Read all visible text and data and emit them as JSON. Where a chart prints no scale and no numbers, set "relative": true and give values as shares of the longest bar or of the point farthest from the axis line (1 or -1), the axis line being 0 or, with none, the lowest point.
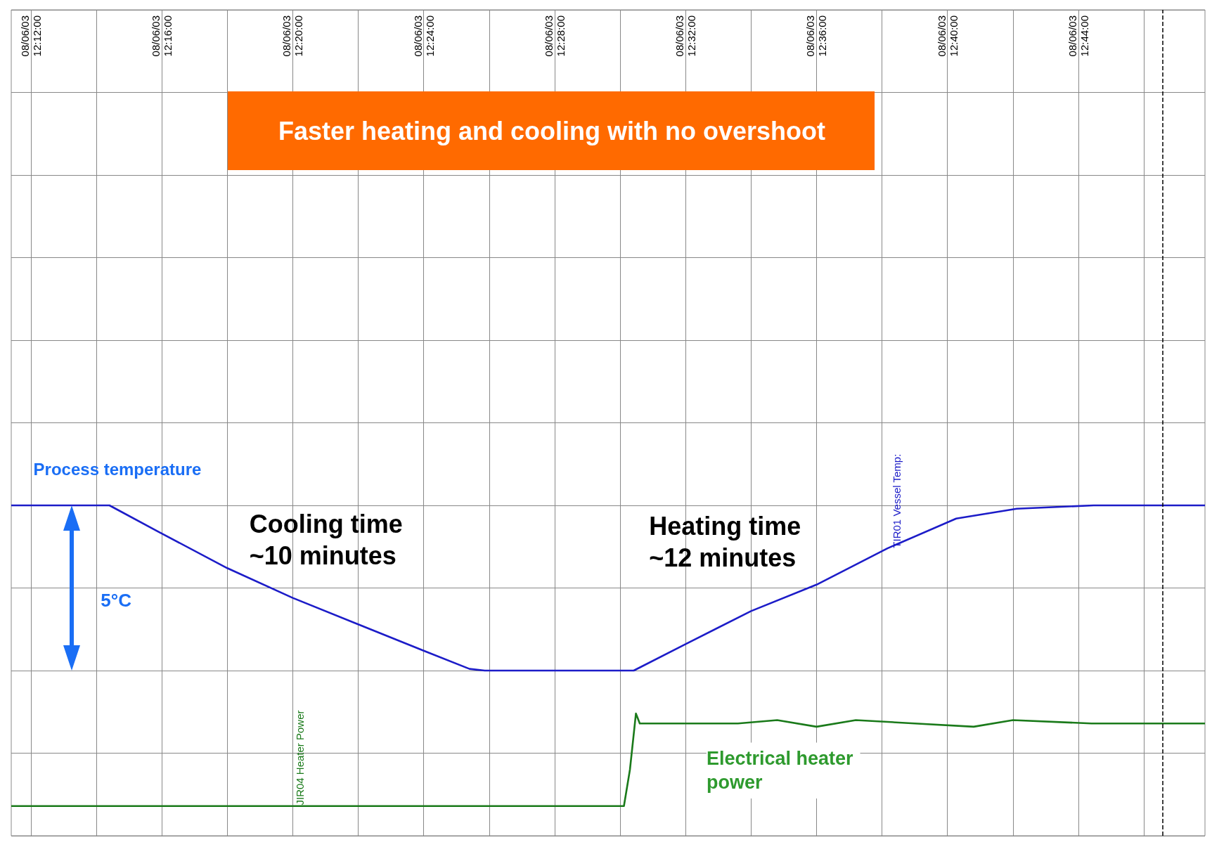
{
  "chart_data": {
    "type": "line",
    "title": "Faster heating and cooling with no overshoot",
    "relative": true,
    "grid": true,
    "xlim": [
      "--06-08T12:11:24",
      "--06-08T12:47:52"
    ],
    "xticks": [
      {
        "value": "--06-08T12:12",
        "label": "08/06/03 12:12:00"
      },
      {
        "value": "--06-08T12:14",
        "label": null
      },
      {
        "value": "--06-08T12:16",
        "label": "08/06/03 12:16:00"
      },
      {
        "value": "--06-08T12:18",
        "label": null
      },
      {
        "value": "--06-08T12:20",
        "label": "08/06/03 12:20:00"
      },
      {
        "value": "--06-08T12:22",
        "label": null
      },
      {
        "value": "--06-08T12:24",
        "label": "08/06/03 12:24:00"
      },
      {
        "value": "--06-08T12:26",
        "label": null
      },
      {
        "value": "--06-08T12:28",
        "label": "08/06/03 12:28:00"
      },
      {
        "value": "--06-08T12:30",
        "label": null
      },
      {
        "value": "--06-08T12:32",
        "label": "08/06/03 12:32:00"
      },
      {
        "value": "--06-08T12:34",
        "label": null
      },
      {
        "value": "--06-08T12:36",
        "label": "08/06/03 12:36:00"
      },
      {
        "value": "--06-08T12:38",
        "label": null
      },
      {
        "value": "--06-08T12:40",
        "label": "08/06/03 12:40:00"
      },
      {
        "value": "--06-08T12:42",
        "label": null
      },
      {
        "value": "--06-08T12:44",
        "label": "08/06/03 12:44:00"
      },
      {
        "value": "--06-08T12:46",
        "label": null
      }
    ],
    "series": [
      {
        "color": "#1c1cc8",
        "x": [
          "--06-08T12:11:24",
          "--06-08T12:14:24",
          "--06-08T12:15:54",
          "--06-08T12:18",
          "--06-08T12:20",
          "--06-08T12:22",
          "--06-08T12:24",
          "--06-08T12:25:24",
          "--06-08T12:25:52",
          "--06-08T12:30:25",
          "--06-08T12:32",
          "--06-08T12:34",
          "--06-08T12:36",
          "--06-08T12:38:10",
          "--06-08T12:40:16",
          "--06-08T12:42:07",
          "--06-08T12:44:28",
          "--06-08T12:47:52"
        ],
        "values": [
          1,
          1,
          0.92,
          0.81,
          0.72,
          0.64,
          0.56,
          0.505,
          0.5,
          0.5,
          0.58,
          0.68,
          0.76,
          0.87,
          0.96,
          0.99,
          1,
          1
        ]
      },
      {
        "color": "#1a7a1a",
        "x": [
          "--06-08T12:11:24",
          "--06-08T12:18",
          "--06-08T12:24",
          "--06-08T12:30:07",
          "--06-08T12:30:18",
          "--06-08T12:30:29",
          "--06-08T12:30:36",
          "--06-08T12:33:36",
          "--06-08T12:34:48",
          "--06-08T12:36",
          "--06-08T12:37:12",
          "--06-08T12:39",
          "--06-08T12:40:48",
          "--06-08T12:42",
          "--06-08T12:44:24",
          "--06-08T12:45:36",
          "--06-08T12:47:52"
        ],
        "values": [
          0.09,
          0.09,
          0.09,
          0.09,
          0.2,
          0.37,
          0.34,
          0.34,
          0.35,
          0.33,
          0.35,
          0.34,
          0.33,
          0.35,
          0.34,
          0.34,
          0.34
        ]
      }
    ],
    "ref_lines": [
      {
        "axis": "x",
        "value": "--06-08T12:46:34",
        "line_style": "dashed",
        "color": "#000000"
      }
    ],
    "annotations": [
      "Process temperature",
      "Cooling time\n~10 minutes",
      "Heating time\n~12 minutes",
      "5°C",
      "Electrical heater\npower",
      "TIR01 Vessel Temp:",
      "JIR04 Heater Power"
    ]
  }
}
